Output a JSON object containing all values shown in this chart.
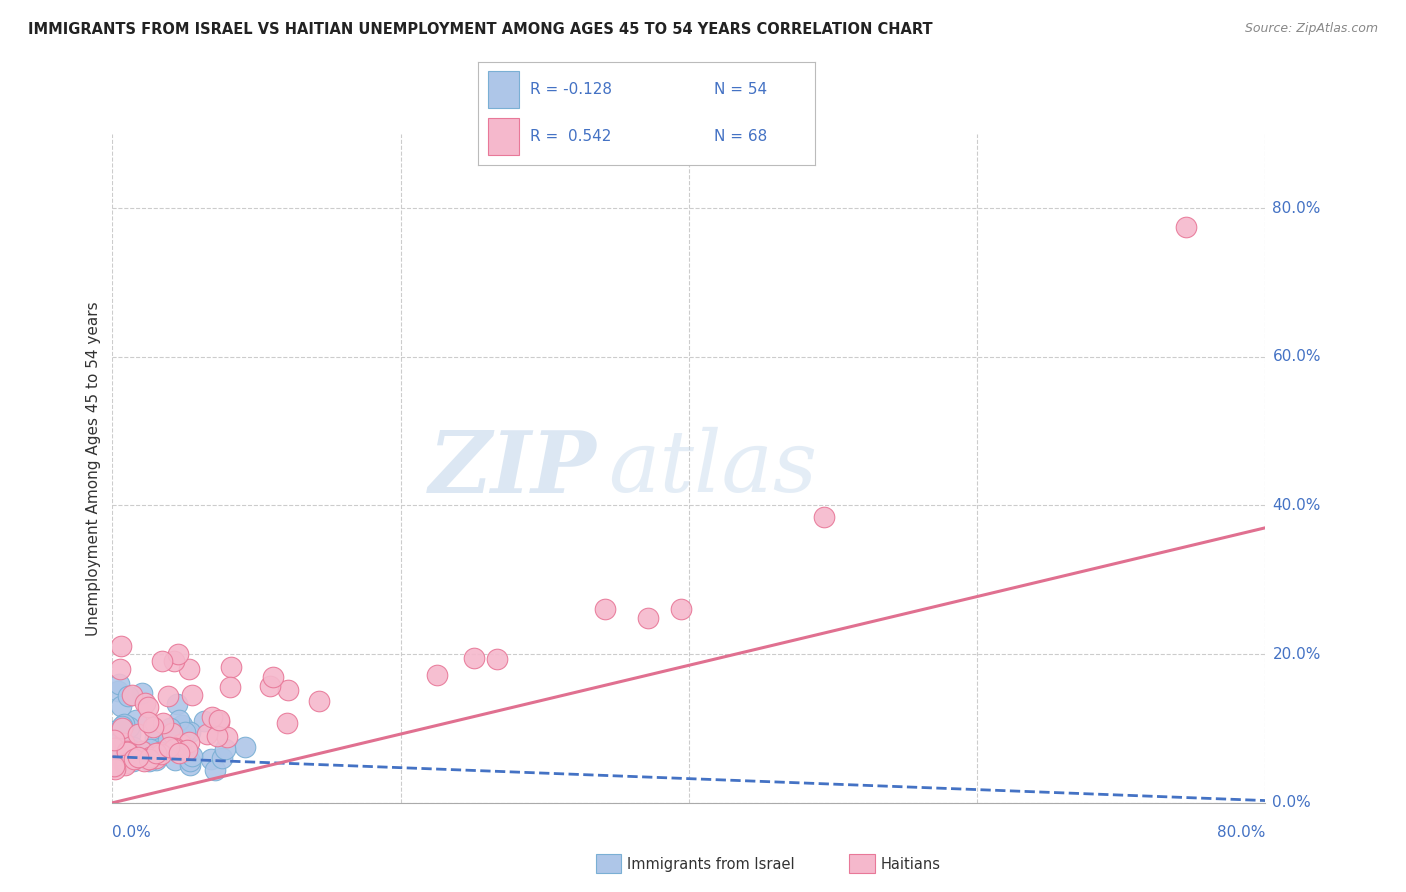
{
  "title": "IMMIGRANTS FROM ISRAEL VS HAITIAN UNEMPLOYMENT AMONG AGES 45 TO 54 YEARS CORRELATION CHART",
  "source": "Source: ZipAtlas.com",
  "ylabel": "Unemployment Among Ages 45 to 54 years",
  "xlim": [
    0.0,
    0.8
  ],
  "ylim": [
    -0.02,
    0.9
  ],
  "plot_ylim": [
    0.0,
    0.9
  ],
  "ytick_labels": [
    "0.0%",
    "20.0%",
    "40.0%",
    "60.0%",
    "80.0%"
  ],
  "ytick_values": [
    0.0,
    0.2,
    0.4,
    0.6,
    0.8
  ],
  "xtick_left_label": "0.0%",
  "xtick_right_label": "80.0%",
  "background_color": "#ffffff",
  "watermark_zip": "ZIP",
  "watermark_atlas": "atlas",
  "legend_r1": "R = -0.128",
  "legend_n1": "N = 54",
  "legend_r2": "R =  0.542",
  "legend_n2": "N = 68",
  "legend_text_color": "#4472c4",
  "israel_color": "#aec6e8",
  "israel_edge_color": "#7aafd4",
  "haiti_color": "#f5b8cc",
  "haiti_edge_color": "#e87898",
  "israel_trend_color": "#4472c4",
  "haiti_trend_color": "#e07090",
  "grid_color": "#cccccc",
  "title_color": "#222222",
  "axis_label_color": "#4472c4",
  "bottom_legend_israel": "Immigrants from Israel",
  "bottom_legend_haiti": "Haitians"
}
